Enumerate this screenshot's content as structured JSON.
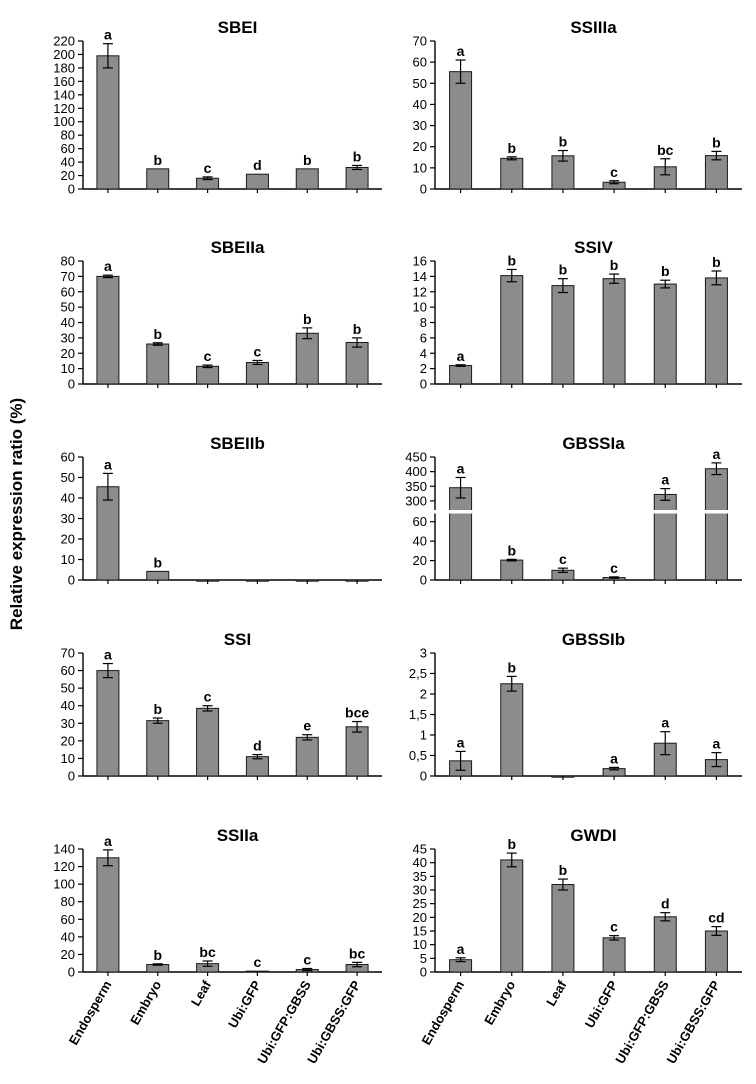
{
  "ylabel": "Relative expression ratio (%)",
  "categories": [
    "Endosperm",
    "Embryo",
    "Leaf",
    "Ubi:GFP",
    "Ubi:GFP:GBSS",
    "Ubi:GBSS:GFP"
  ],
  "colors": {
    "bar": "#8c8c8c",
    "outline": "#1a1a1a"
  },
  "chart_data": [
    {
      "type": "bar",
      "title": "SBEI",
      "ylim": [
        0,
        220
      ],
      "yticks": [
        "0",
        "20",
        "40",
        "60",
        "80",
        "100",
        "120",
        "140",
        "160",
        "180",
        "200",
        "220"
      ],
      "values": [
        198,
        30,
        16,
        22,
        30,
        32
      ],
      "errors": [
        18,
        0,
        2,
        0,
        0,
        3
      ],
      "labels": [
        "a",
        "b",
        "c",
        "d",
        "b",
        "b"
      ]
    },
    {
      "type": "bar",
      "title": "SSIIIa",
      "ylim": [
        0,
        70
      ],
      "yticks": [
        "0",
        "10",
        "20",
        "30",
        "40",
        "50",
        "60",
        "70"
      ],
      "values": [
        55.5,
        14.5,
        15.7,
        3.2,
        10.5,
        15.8
      ],
      "errors": [
        5.5,
        0.7,
        2.5,
        0.7,
        3.8,
        2
      ],
      "labels": [
        "a",
        "b",
        "b",
        "c",
        "bc",
        "b"
      ]
    },
    {
      "type": "bar",
      "title": "SBEIIa",
      "ylim": [
        0,
        80
      ],
      "yticks": [
        "0",
        "10",
        "20",
        "30",
        "40",
        "50",
        "60",
        "70",
        "80"
      ],
      "values": [
        70,
        26,
        11.5,
        14,
        33,
        27
      ],
      "errors": [
        0.8,
        0.8,
        0.8,
        1.3,
        3.5,
        3
      ],
      "labels": [
        "a",
        "b",
        "c",
        "c",
        "b",
        "b"
      ]
    },
    {
      "type": "bar",
      "title": "SSIV",
      "ylim": [
        0,
        16
      ],
      "yticks": [
        "0",
        "2",
        "4",
        "6",
        "8",
        "10",
        "12",
        "14",
        "16"
      ],
      "values": [
        2.4,
        14.1,
        12.8,
        13.7,
        13,
        13.8
      ],
      "errors": [
        0.1,
        0.8,
        0.9,
        0.6,
        0.5,
        0.9
      ],
      "labels": [
        "a",
        "b",
        "b",
        "b",
        "b",
        "b"
      ]
    },
    {
      "type": "bar",
      "title": "SBEIIb",
      "ylim": [
        0,
        60
      ],
      "yticks": [
        "0",
        "10",
        "20",
        "30",
        "40",
        "50",
        "60"
      ],
      "values": [
        45.5,
        4.2,
        0,
        0,
        0,
        0
      ],
      "errors": [
        6.5,
        0,
        0,
        0,
        0,
        0
      ],
      "labels": [
        "a",
        "b",
        "",
        "",
        "",
        ""
      ]
    },
    {
      "type": "bar",
      "title": "GBSSIa",
      "broken_axis": true,
      "ylim_lower": [
        0,
        70
      ],
      "ylim_upper": [
        250,
        450
      ],
      "yticks_lower": [
        "0",
        "20",
        "40",
        "60"
      ],
      "yticks_upper": [
        "300",
        "350",
        "400",
        "450"
      ],
      "values": [
        345,
        20.5,
        10,
        2.5,
        322,
        410
      ],
      "errors": [
        35,
        0.8,
        2.2,
        0.7,
        20,
        20
      ],
      "labels": [
        "a",
        "b",
        "c",
        "c",
        "a",
        "a"
      ]
    },
    {
      "type": "bar",
      "title": "SSI",
      "ylim": [
        0,
        70
      ],
      "yticks": [
        "0",
        "10",
        "20",
        "30",
        "40",
        "50",
        "60",
        "70"
      ],
      "values": [
        60,
        31.5,
        38.5,
        11,
        22,
        28
      ],
      "errors": [
        4,
        1.5,
        1.5,
        1.2,
        1.5,
        3
      ],
      "labels": [
        "a",
        "b",
        "c",
        "d",
        "e",
        "bce"
      ]
    },
    {
      "type": "bar",
      "title": "GBSSIb",
      "ylim": [
        0,
        3
      ],
      "yticks": [
        "0",
        "0,5",
        "1",
        "1,5",
        "2",
        "2,5",
        "3"
      ],
      "values": [
        0.37,
        2.25,
        0,
        0.18,
        0.8,
        0.4
      ],
      "errors": [
        0.23,
        0.18,
        0,
        0.03,
        0.28,
        0.17
      ],
      "labels": [
        "a",
        "b",
        "",
        "a",
        "a",
        "a"
      ]
    },
    {
      "type": "bar",
      "title": "SSIIa",
      "ylim": [
        0,
        140
      ],
      "yticks": [
        "0",
        "20",
        "40",
        "60",
        "80",
        "100",
        "120",
        "140"
      ],
      "values": [
        130,
        8.5,
        9.5,
        1,
        2.8,
        8.5
      ],
      "errors": [
        9,
        0.8,
        3,
        0,
        1.2,
        2.5
      ],
      "labels": [
        "a",
        "b",
        "bc",
        "c",
        "c",
        "bc"
      ]
    },
    {
      "type": "bar",
      "title": "GWDI",
      "ylim": [
        0,
        45
      ],
      "yticks": [
        "0",
        "5",
        "10",
        "15",
        "20",
        "25",
        "30",
        "35",
        "40",
        "45"
      ],
      "values": [
        4.5,
        41,
        32,
        12.5,
        20.2,
        15
      ],
      "errors": [
        0.7,
        2.5,
        2,
        0.8,
        1.5,
        1.6
      ],
      "labels": [
        "a",
        "b",
        "b",
        "c",
        "d",
        "cd"
      ]
    }
  ]
}
